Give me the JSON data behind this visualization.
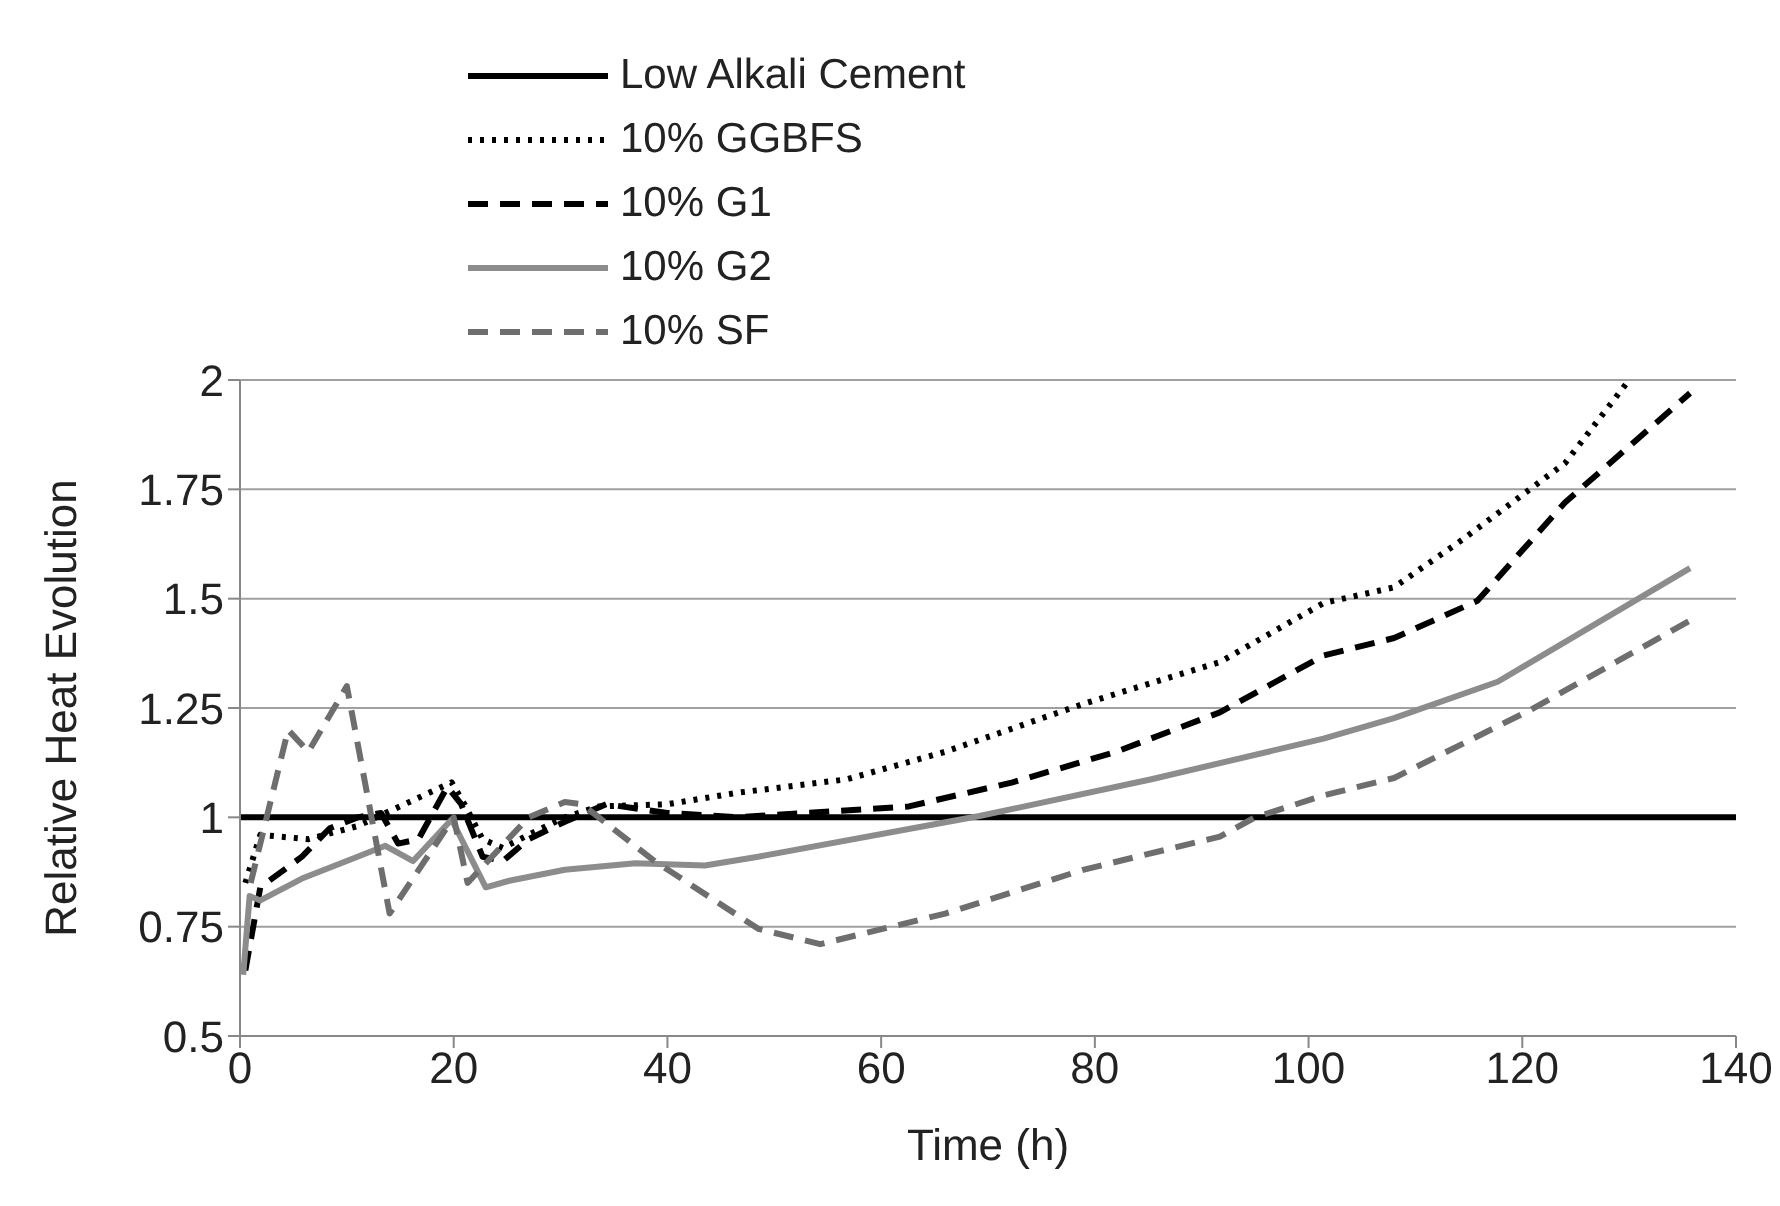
{
  "chart_data": {
    "type": "line",
    "xlabel": "Time (h)",
    "ylabel": "Relative Heat Evolution",
    "xlim": [
      0,
      140
    ],
    "xticks": [
      0,
      20,
      40,
      60,
      80,
      100,
      120,
      140
    ],
    "ylim": [
      0.5,
      2
    ],
    "yticks": [
      0.5,
      0.75,
      1,
      1.25,
      1.5,
      1.75,
      2
    ],
    "grid": "y",
    "legend": "top left",
    "marker": "none",
    "series": [
      {
        "name": "Low Alkali Cement",
        "color": "#000000",
        "line_style": "solid",
        "x": [
          0,
          140
        ],
        "values": [
          1,
          1
        ]
      },
      {
        "name": "10% GGBFS",
        "color": "#000000",
        "line_style": "dotted",
        "x": [
          0.5,
          1.9,
          6.4,
          11,
          19.8,
          21,
          22.7,
          24.6,
          27,
          30.4,
          33.6,
          40,
          46.5,
          56.8,
          66,
          79,
          91.7,
          101.4,
          108,
          114.4,
          124,
          130
        ],
        "values": [
          0.85,
          0.96,
          0.95,
          0.98,
          1.08,
          1.03,
          0.95,
          0.93,
          0.96,
          1.0,
          1.025,
          1.03,
          1.056,
          1.087,
          1.15,
          1.26,
          1.355,
          1.49,
          1.526,
          1.635,
          1.81,
          2.0
        ]
      },
      {
        "name": "10% G1",
        "color": "#000000",
        "line_style": "dashed",
        "x": [
          0.5,
          1.9,
          5.8,
          8.4,
          11,
          13.2,
          14.8,
          16.7,
          19.4,
          20.7,
          22.7,
          24.6,
          27,
          30.4,
          34.3,
          40,
          46.5,
          62.6,
          72.3,
          82,
          91.7,
          101.4,
          108,
          115.8,
          124,
          135.7
        ],
        "values": [
          0.65,
          0.84,
          0.91,
          0.975,
          1.0,
          1.01,
          0.94,
          0.95,
          1.07,
          1.03,
          0.91,
          0.9,
          0.95,
          0.99,
          1.03,
          1.01,
          1.0,
          1.025,
          1.08,
          1.15,
          1.24,
          1.37,
          1.41,
          1.495,
          1.72,
          1.97
        ]
      },
      {
        "name": "10% G2",
        "color": "#8c8c8c",
        "line_style": "solid",
        "x": [
          0.3,
          0.9,
          1.9,
          5.8,
          11,
          13.6,
          16.2,
          19.8,
          23,
          25.2,
          30.4,
          37,
          43.5,
          48.5,
          69.2,
          85.3,
          101.4,
          108,
          117.7,
          135.7
        ],
        "values": [
          0.64,
          0.82,
          0.81,
          0.86,
          0.91,
          0.935,
          0.9,
          0.995,
          0.84,
          0.855,
          0.88,
          0.895,
          0.89,
          0.91,
          1.003,
          1.087,
          1.18,
          1.227,
          1.31,
          1.57
        ]
      },
      {
        "name": "10% SF",
        "color": "#6e6e6e",
        "line_style": "dashed",
        "x": [
          1,
          4.5,
          6.4,
          10,
          14,
          20,
          21.3,
          27,
          30.4,
          32,
          38.8,
          48.5,
          54.3,
          66,
          78.9,
          91.7,
          95,
          101.4,
          108,
          120.8,
          135.7
        ],
        "values": [
          0.85,
          1.2,
          1.15,
          1.3,
          0.78,
          1.0,
          0.85,
          1.0,
          1.035,
          1.03,
          0.9,
          0.745,
          0.71,
          0.78,
          0.88,
          0.956,
          1.0,
          1.05,
          1.09,
          1.246,
          1.45
        ]
      }
    ]
  }
}
